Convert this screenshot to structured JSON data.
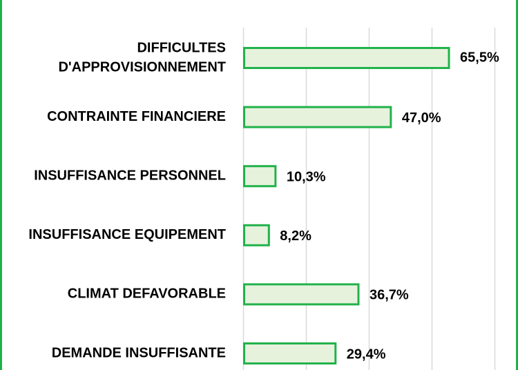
{
  "chart_data": {
    "type": "bar",
    "orientation": "horizontal",
    "categories": [
      [
        "DIFFICULTES",
        "D'APPROVISIONNEMENT"
      ],
      [
        "CONTRAINTE FINANCIERE"
      ],
      [
        "INSUFFISANCE PERSONNEL"
      ],
      [
        "INSUFFISANCE EQUIPEMENT"
      ],
      [
        "CLIMAT DEFAVORABLE"
      ],
      [
        "DEMANDE INSUFFISANTE"
      ]
    ],
    "values": [
      65.5,
      47.0,
      10.3,
      8.2,
      36.7,
      29.4
    ],
    "labels": [
      "65,5%",
      "47,0%",
      "10,3%",
      "8,2%",
      "36,7%",
      "29,4%"
    ],
    "xlim": [
      0,
      80
    ],
    "gridlines": [
      0,
      20,
      40,
      60,
      80
    ],
    "grid": true,
    "legend": "none",
    "colors": {
      "bar_fill": "#e6f2dc",
      "bar_stroke": "#21b24a",
      "gridline": "#d9d9d9",
      "frame": "#21b24a"
    }
  }
}
